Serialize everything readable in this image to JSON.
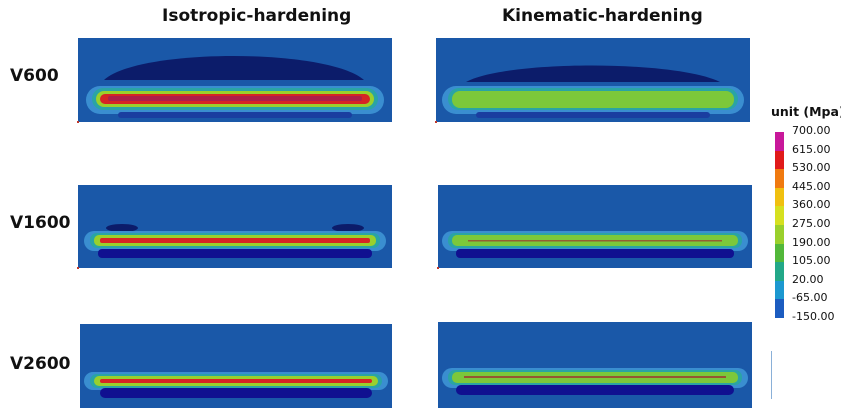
{
  "columns": {
    "isotropic": "Isotropic-hardening",
    "kinematic": "Kinematic-hardening"
  },
  "rows": [
    {
      "label": "V600"
    },
    {
      "label": "V1600"
    },
    {
      "label": "V2600"
    }
  ],
  "legend": {
    "title": "unit (Mpa)",
    "values": [
      "700.00",
      "615.00",
      "530.00",
      "445.00",
      "360.00",
      "275.00",
      "190.00",
      "105.00",
      "20.00",
      "-65.00",
      "-150.00"
    ],
    "colors": [
      "#c8189a",
      "#e01a1a",
      "#f07a10",
      "#f0c010",
      "#d6e020",
      "#9ad02c",
      "#52b83a",
      "#22a888",
      "#1c98d0",
      "#1c5cc0",
      "#101090"
    ]
  },
  "colors": {
    "background": "#1a58a8",
    "edge": "#3a8ed0",
    "band_low": "#2aa4a4",
    "band_mid": "#7cc83a",
    "band_high": "#d62424",
    "crater": "#0c1c6a"
  }
}
